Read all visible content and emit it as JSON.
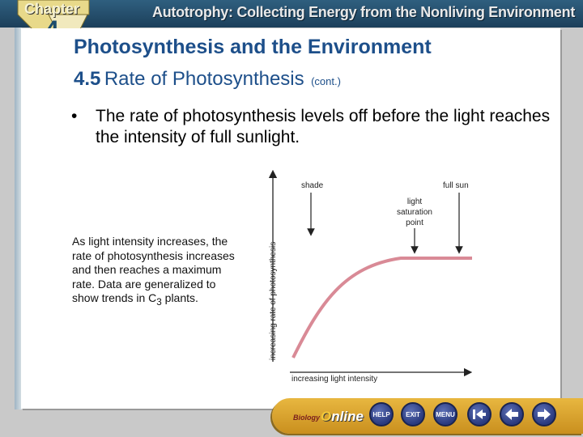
{
  "header": {
    "chapter_word": "Chapter",
    "chapter_number": "4",
    "title": "Autotrophy: Collecting Energy from the Nonliving Environment"
  },
  "slide": {
    "title": "Photosynthesis and the Environment",
    "section_number": "4.5",
    "section_name": "Rate of Photosynthesis",
    "section_suffix": "(cont.)",
    "bullet": "The rate of photosynthesis levels off before the light reaches the intensity of full sunlight.",
    "caption_before": "As light intensity increases, the rate of photosynthesis increases and then reaches a maximum rate. Data are generalized to show trends in C",
    "caption_sub": "3",
    "caption_after": " plants."
  },
  "graph": {
    "y_label": "increasing rate of photosynthesis",
    "x_label": "increasing light intensity",
    "label_shade": "shade",
    "label_full_sun": "full sun",
    "label_saturation_1": "light",
    "label_saturation_2": "saturation",
    "label_saturation_3": "point",
    "curve_color": "#d98a96"
  },
  "nav": {
    "logo_biology": "Biology",
    "logo_online": "nline",
    "help_label": "HELP",
    "exit_label": "EXIT",
    "menu_label": "MENU"
  }
}
